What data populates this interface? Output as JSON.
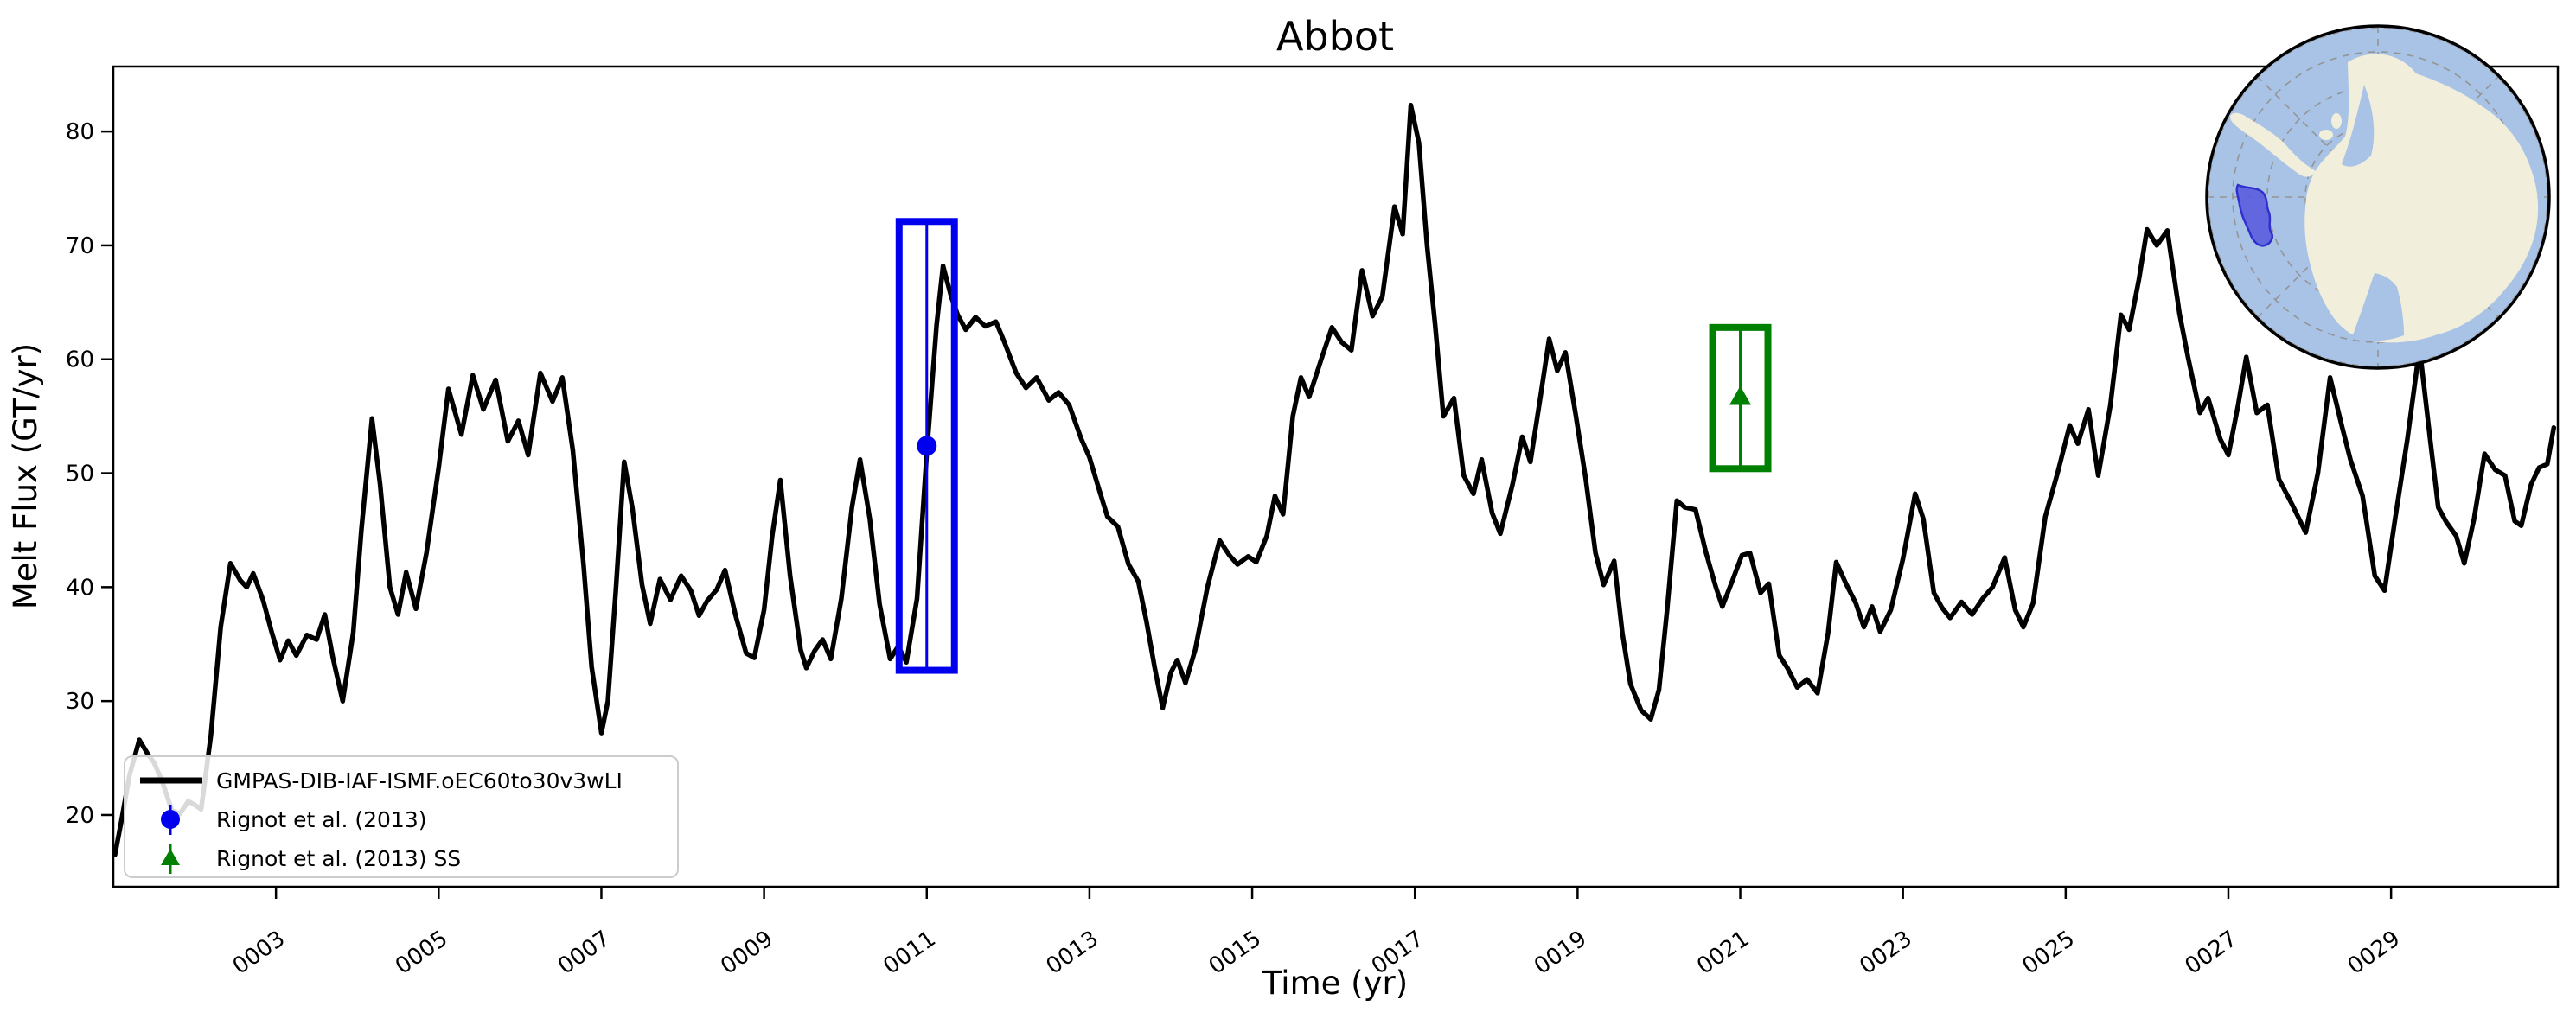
{
  "title": "Abbot",
  "axes": {
    "xlabel": "Time (yr)",
    "ylabel": "Melt Flux (GT/yr)"
  },
  "legend": {
    "entries": [
      {
        "label": "GMPAS-DIB-IAF-ISMF.oEC60to30v3wLI",
        "type": "line",
        "color": "#000000"
      },
      {
        "label": "Rignot et al. (2013)",
        "type": "errorbar",
        "marker": "circle",
        "color": "#0000ee"
      },
      {
        "label": "Rignot et al. (2013) SS",
        "type": "errorbar",
        "marker": "triangle-up",
        "color": "#008000"
      }
    ]
  },
  "chart_data": {
    "type": "line",
    "title": "Abbot",
    "xlabel": "Time (yr)",
    "ylabel": "Melt Flux (GT/yr)",
    "xlim": [
      1.0,
      31.05
    ],
    "ylim": [
      13.7,
      85.7
    ],
    "grid": false,
    "legend_position": "lower-left",
    "x_ticks": {
      "values": [
        3,
        5,
        7,
        9,
        11,
        13,
        15,
        17,
        19,
        21,
        23,
        25,
        27,
        29
      ],
      "labels": [
        "0003",
        "0005",
        "0007",
        "0009",
        "0011",
        "0013",
        "0015",
        "0017",
        "0019",
        "0021",
        "0023",
        "0025",
        "0027",
        "0029"
      ],
      "rotation_deg": 35
    },
    "y_ticks": {
      "values": [
        20,
        30,
        40,
        50,
        60,
        70,
        80
      ],
      "labels": [
        "20",
        "30",
        "40",
        "50",
        "60",
        "70",
        "80"
      ]
    },
    "series": [
      {
        "name": "GMPAS-DIB-IAF-ISMF.oEC60to30v3wLI",
        "color": "#000000",
        "linewidth": 5.5,
        "points": [
          [
            1.02,
            16.5
          ],
          [
            1.1,
            19.5
          ],
          [
            1.2,
            23.5
          ],
          [
            1.32,
            26.6
          ],
          [
            1.42,
            25.4
          ],
          [
            1.5,
            24.6
          ],
          [
            1.6,
            23.0
          ],
          [
            1.72,
            20.4
          ],
          [
            1.82,
            20.1
          ],
          [
            1.92,
            21.2
          ],
          [
            2.0,
            20.9
          ],
          [
            2.08,
            20.5
          ],
          [
            2.2,
            27.0
          ],
          [
            2.32,
            36.5
          ],
          [
            2.44,
            42.1
          ],
          [
            2.56,
            40.6
          ],
          [
            2.64,
            40.0
          ],
          [
            2.72,
            41.2
          ],
          [
            2.84,
            38.9
          ],
          [
            2.95,
            36.0
          ],
          [
            3.05,
            33.6
          ],
          [
            3.15,
            35.3
          ],
          [
            3.25,
            34.0
          ],
          [
            3.38,
            35.8
          ],
          [
            3.5,
            35.4
          ],
          [
            3.6,
            37.6
          ],
          [
            3.7,
            33.8
          ],
          [
            3.82,
            30.0
          ],
          [
            3.95,
            36.0
          ],
          [
            4.05,
            45.0
          ],
          [
            4.18,
            54.8
          ],
          [
            4.28,
            49.0
          ],
          [
            4.4,
            40.0
          ],
          [
            4.5,
            37.6
          ],
          [
            4.6,
            41.3
          ],
          [
            4.72,
            38.1
          ],
          [
            4.85,
            43.0
          ],
          [
            5.0,
            50.5
          ],
          [
            5.12,
            57.4
          ],
          [
            5.28,
            53.4
          ],
          [
            5.42,
            58.6
          ],
          [
            5.55,
            55.6
          ],
          [
            5.7,
            58.2
          ],
          [
            5.85,
            52.8
          ],
          [
            5.98,
            54.6
          ],
          [
            6.1,
            51.6
          ],
          [
            6.25,
            58.8
          ],
          [
            6.4,
            56.3
          ],
          [
            6.52,
            58.4
          ],
          [
            6.65,
            52.0
          ],
          [
            6.78,
            42.0
          ],
          [
            6.88,
            33.0
          ],
          [
            7.0,
            27.2
          ],
          [
            7.08,
            30.0
          ],
          [
            7.18,
            40.0
          ],
          [
            7.28,
            51.0
          ],
          [
            7.38,
            47.0
          ],
          [
            7.5,
            40.2
          ],
          [
            7.6,
            36.8
          ],
          [
            7.72,
            40.7
          ],
          [
            7.85,
            38.9
          ],
          [
            7.98,
            41.0
          ],
          [
            8.1,
            39.7
          ],
          [
            8.2,
            37.5
          ],
          [
            8.3,
            38.8
          ],
          [
            8.42,
            39.8
          ],
          [
            8.52,
            41.5
          ],
          [
            8.65,
            37.5
          ],
          [
            8.78,
            34.2
          ],
          [
            8.88,
            33.8
          ],
          [
            9.0,
            38.0
          ],
          [
            9.1,
            44.5
          ],
          [
            9.2,
            49.4
          ],
          [
            9.32,
            41.0
          ],
          [
            9.45,
            34.5
          ],
          [
            9.52,
            32.9
          ],
          [
            9.62,
            34.4
          ],
          [
            9.72,
            35.4
          ],
          [
            9.82,
            33.7
          ],
          [
            9.95,
            39.0
          ],
          [
            10.08,
            47.0
          ],
          [
            10.18,
            51.2
          ],
          [
            10.3,
            46.0
          ],
          [
            10.42,
            38.5
          ],
          [
            10.55,
            33.7
          ],
          [
            10.65,
            34.8
          ],
          [
            10.75,
            33.4
          ],
          [
            10.88,
            39.0
          ],
          [
            11.0,
            51.8
          ],
          [
            11.12,
            63.0
          ],
          [
            11.2,
            68.2
          ],
          [
            11.3,
            65.5
          ],
          [
            11.38,
            63.9
          ],
          [
            11.48,
            62.6
          ],
          [
            11.6,
            63.7
          ],
          [
            11.72,
            62.9
          ],
          [
            11.85,
            63.3
          ],
          [
            11.95,
            61.6
          ],
          [
            12.1,
            58.8
          ],
          [
            12.22,
            57.5
          ],
          [
            12.35,
            58.4
          ],
          [
            12.5,
            56.4
          ],
          [
            12.62,
            57.1
          ],
          [
            12.75,
            56.0
          ],
          [
            12.9,
            53.0
          ],
          [
            13.0,
            51.4
          ],
          [
            13.1,
            49.0
          ],
          [
            13.22,
            46.2
          ],
          [
            13.35,
            45.3
          ],
          [
            13.48,
            42.0
          ],
          [
            13.6,
            40.5
          ],
          [
            13.7,
            37.0
          ],
          [
            13.8,
            33.0
          ],
          [
            13.9,
            29.4
          ],
          [
            14.0,
            32.5
          ],
          [
            14.08,
            33.6
          ],
          [
            14.18,
            31.6
          ],
          [
            14.3,
            34.5
          ],
          [
            14.45,
            40.0
          ],
          [
            14.6,
            44.1
          ],
          [
            14.72,
            42.8
          ],
          [
            14.82,
            42.0
          ],
          [
            14.95,
            42.7
          ],
          [
            15.05,
            42.2
          ],
          [
            15.18,
            44.5
          ],
          [
            15.28,
            48.0
          ],
          [
            15.38,
            46.4
          ],
          [
            15.5,
            55.0
          ],
          [
            15.6,
            58.4
          ],
          [
            15.7,
            56.7
          ],
          [
            15.85,
            60.0
          ],
          [
            15.98,
            62.8
          ],
          [
            16.1,
            61.5
          ],
          [
            16.22,
            60.8
          ],
          [
            16.35,
            67.8
          ],
          [
            16.48,
            63.8
          ],
          [
            16.6,
            65.5
          ],
          [
            16.75,
            73.4
          ],
          [
            16.85,
            71.0
          ],
          [
            16.95,
            82.3
          ],
          [
            17.05,
            79.0
          ],
          [
            17.15,
            70.0
          ],
          [
            17.25,
            63.0
          ],
          [
            17.35,
            55.0
          ],
          [
            17.48,
            56.6
          ],
          [
            17.6,
            49.8
          ],
          [
            17.72,
            48.2
          ],
          [
            17.82,
            51.2
          ],
          [
            17.95,
            46.5
          ],
          [
            18.05,
            44.7
          ],
          [
            18.2,
            49.0
          ],
          [
            18.32,
            53.2
          ],
          [
            18.42,
            51.0
          ],
          [
            18.55,
            57.0
          ],
          [
            18.65,
            61.8
          ],
          [
            18.75,
            59.0
          ],
          [
            18.85,
            60.6
          ],
          [
            18.98,
            55.0
          ],
          [
            19.1,
            49.5
          ],
          [
            19.22,
            43.0
          ],
          [
            19.32,
            40.2
          ],
          [
            19.45,
            42.3
          ],
          [
            19.55,
            36.0
          ],
          [
            19.65,
            31.5
          ],
          [
            19.78,
            29.2
          ],
          [
            19.9,
            28.4
          ],
          [
            20.0,
            31.0
          ],
          [
            20.1,
            38.0
          ],
          [
            20.22,
            47.6
          ],
          [
            20.32,
            47.0
          ],
          [
            20.45,
            46.8
          ],
          [
            20.58,
            43.0
          ],
          [
            20.7,
            40.0
          ],
          [
            20.78,
            38.3
          ],
          [
            20.9,
            40.5
          ],
          [
            21.02,
            42.8
          ],
          [
            21.12,
            43.0
          ],
          [
            21.25,
            39.5
          ],
          [
            21.35,
            40.3
          ],
          [
            21.48,
            34.0
          ],
          [
            21.58,
            32.9
          ],
          [
            21.7,
            31.2
          ],
          [
            21.82,
            31.9
          ],
          [
            21.95,
            30.7
          ],
          [
            22.08,
            36.0
          ],
          [
            22.18,
            42.2
          ],
          [
            22.3,
            40.3
          ],
          [
            22.42,
            38.6
          ],
          [
            22.52,
            36.5
          ],
          [
            22.62,
            38.3
          ],
          [
            22.72,
            36.1
          ],
          [
            22.85,
            38.0
          ],
          [
            23.0,
            42.5
          ],
          [
            23.15,
            48.2
          ],
          [
            23.25,
            46.0
          ],
          [
            23.38,
            39.5
          ],
          [
            23.48,
            38.2
          ],
          [
            23.58,
            37.3
          ],
          [
            23.72,
            38.7
          ],
          [
            23.85,
            37.6
          ],
          [
            23.98,
            39.0
          ],
          [
            24.1,
            40.0
          ],
          [
            24.25,
            42.6
          ],
          [
            24.38,
            38.0
          ],
          [
            24.48,
            36.5
          ],
          [
            24.6,
            38.6
          ],
          [
            24.75,
            46.2
          ],
          [
            24.9,
            50.0
          ],
          [
            25.05,
            54.2
          ],
          [
            25.15,
            52.6
          ],
          [
            25.28,
            55.6
          ],
          [
            25.4,
            49.8
          ],
          [
            25.55,
            56.0
          ],
          [
            25.68,
            63.9
          ],
          [
            25.78,
            62.6
          ],
          [
            25.9,
            67.0
          ],
          [
            26.0,
            71.4
          ],
          [
            26.12,
            70.0
          ],
          [
            26.25,
            71.3
          ],
          [
            26.4,
            64.0
          ],
          [
            26.5,
            60.3
          ],
          [
            26.65,
            55.3
          ],
          [
            26.75,
            56.6
          ],
          [
            26.9,
            53.0
          ],
          [
            27.0,
            51.6
          ],
          [
            27.12,
            56.0
          ],
          [
            27.22,
            60.2
          ],
          [
            27.35,
            55.3
          ],
          [
            27.48,
            56.0
          ],
          [
            27.62,
            49.5
          ],
          [
            27.78,
            47.3
          ],
          [
            27.95,
            44.8
          ],
          [
            28.1,
            50.0
          ],
          [
            28.25,
            58.4
          ],
          [
            28.4,
            54.0
          ],
          [
            28.5,
            51.2
          ],
          [
            28.65,
            48.0
          ],
          [
            28.8,
            41.0
          ],
          [
            28.92,
            39.7
          ],
          [
            29.05,
            46.0
          ],
          [
            29.2,
            53.0
          ],
          [
            29.35,
            61.0
          ],
          [
            29.48,
            53.0
          ],
          [
            29.58,
            47.0
          ],
          [
            29.68,
            45.7
          ],
          [
            29.8,
            44.5
          ],
          [
            29.9,
            42.1
          ],
          [
            30.02,
            46.0
          ],
          [
            30.15,
            51.7
          ],
          [
            30.28,
            50.3
          ],
          [
            30.4,
            49.8
          ],
          [
            30.52,
            45.8
          ],
          [
            30.6,
            45.4
          ],
          [
            30.72,
            49.0
          ],
          [
            30.82,
            50.5
          ],
          [
            30.92,
            50.8
          ],
          [
            31.0,
            54.0
          ]
        ]
      }
    ],
    "errorbars": [
      {
        "name": "Rignot et al. (2013)",
        "x": 11.0,
        "value": 52.4,
        "yerr": 19.7,
        "xerr": 0.34,
        "color": "#0000ee",
        "marker": "circle"
      },
      {
        "name": "Rignot et al. (2013) SS",
        "x": 21.0,
        "value": 56.6,
        "yerr": 6.2,
        "xerr": 0.34,
        "color": "#008000",
        "marker": "triangle-up"
      }
    ]
  },
  "inset_map": {
    "description": "South polar stereographic locator map of Antarctica",
    "highlighted_region": "Abbot",
    "colors": {
      "ocean": "#a9c3e6",
      "land": "#f1efdc",
      "graticule": "#949494",
      "highlight_fill": "#5757dd",
      "highlight_stroke": "#3030cc",
      "border": "#000000"
    }
  }
}
